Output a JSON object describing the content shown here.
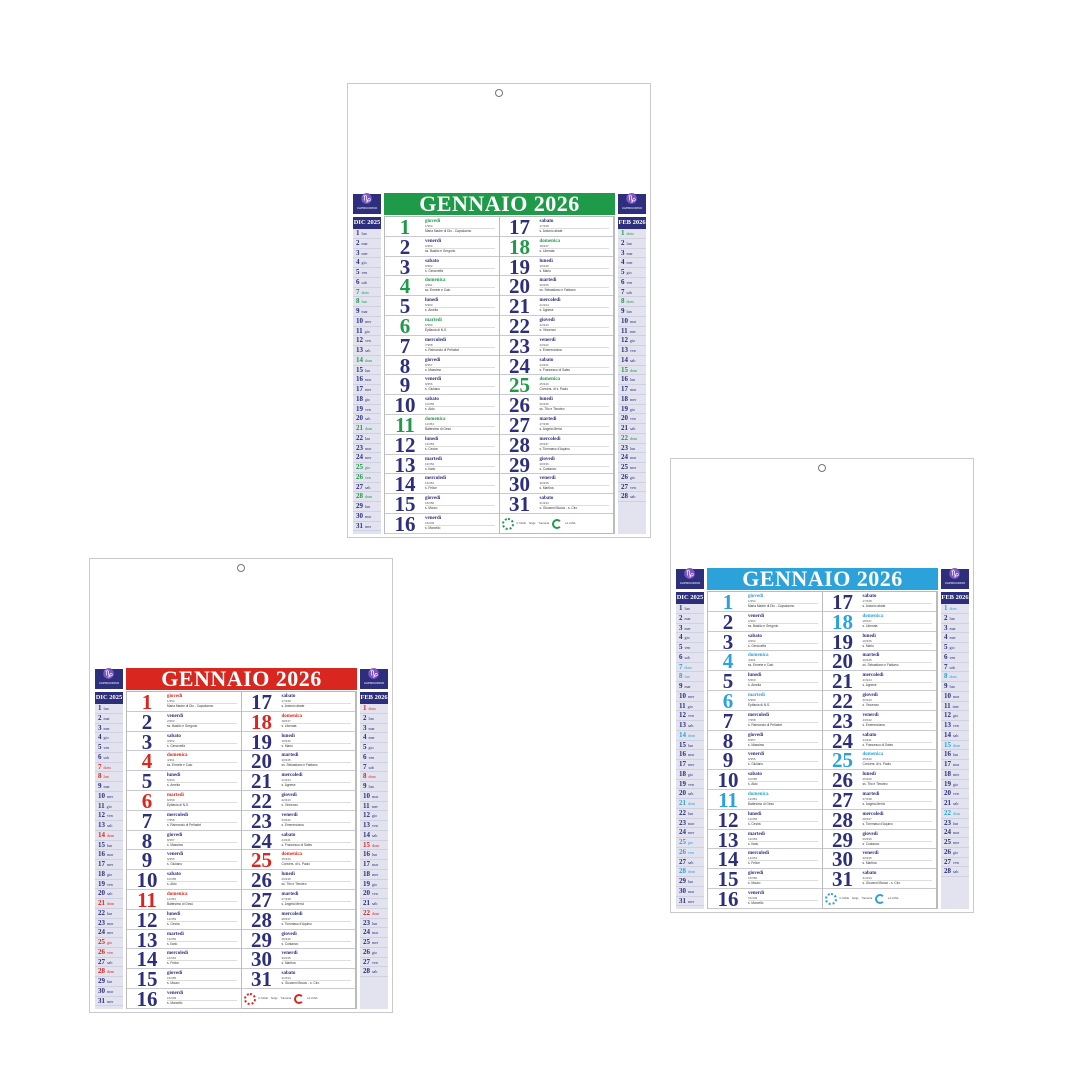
{
  "calendar": {
    "title": "GENNAIO 2026",
    "logo_text": "CAPRICORNO",
    "left_month": {
      "label": "DIC 2025",
      "days": [
        [
          "1",
          "lun",
          0
        ],
        [
          "2",
          "mar",
          0
        ],
        [
          "3",
          "mer",
          0
        ],
        [
          "4",
          "gio",
          0
        ],
        [
          "5",
          "ven",
          0
        ],
        [
          "6",
          "sab",
          0
        ],
        [
          "7",
          "dom",
          1
        ],
        [
          "8",
          "lun",
          1
        ],
        [
          "9",
          "mar",
          0
        ],
        [
          "10",
          "mer",
          0
        ],
        [
          "11",
          "gio",
          0
        ],
        [
          "12",
          "ven",
          0
        ],
        [
          "13",
          "sab",
          0
        ],
        [
          "14",
          "dom",
          1
        ],
        [
          "15",
          "lun",
          0
        ],
        [
          "16",
          "mar",
          0
        ],
        [
          "17",
          "mer",
          0
        ],
        [
          "18",
          "gio",
          0
        ],
        [
          "19",
          "ven",
          0
        ],
        [
          "20",
          "sab",
          0
        ],
        [
          "21",
          "dom",
          1
        ],
        [
          "22",
          "lun",
          0
        ],
        [
          "23",
          "mar",
          0
        ],
        [
          "24",
          "mer",
          0
        ],
        [
          "25",
          "gio",
          1
        ],
        [
          "26",
          "ven",
          1
        ],
        [
          "27",
          "sab",
          0
        ],
        [
          "28",
          "dom",
          1
        ],
        [
          "29",
          "lun",
          0
        ],
        [
          "30",
          "mar",
          0
        ],
        [
          "31",
          "mer",
          0
        ]
      ]
    },
    "right_month": {
      "label": "FEB 2026",
      "days": [
        [
          "1",
          "dom",
          1
        ],
        [
          "2",
          "lun",
          0
        ],
        [
          "3",
          "mar",
          0
        ],
        [
          "4",
          "mer",
          0
        ],
        [
          "5",
          "gio",
          0
        ],
        [
          "6",
          "ven",
          0
        ],
        [
          "7",
          "sab",
          0
        ],
        [
          "8",
          "dom",
          1
        ],
        [
          "9",
          "lun",
          0
        ],
        [
          "10",
          "mar",
          0
        ],
        [
          "11",
          "mer",
          0
        ],
        [
          "12",
          "gio",
          0
        ],
        [
          "13",
          "ven",
          0
        ],
        [
          "14",
          "sab",
          0
        ],
        [
          "15",
          "dom",
          1
        ],
        [
          "16",
          "lun",
          0
        ],
        [
          "17",
          "mar",
          0
        ],
        [
          "18",
          "mer",
          0
        ],
        [
          "19",
          "gio",
          0
        ],
        [
          "20",
          "ven",
          0
        ],
        [
          "21",
          "sab",
          0
        ],
        [
          "22",
          "dom",
          1
        ],
        [
          "23",
          "lun",
          0
        ],
        [
          "24",
          "mar",
          0
        ],
        [
          "25",
          "mer",
          0
        ],
        [
          "26",
          "gio",
          0
        ],
        [
          "27",
          "ven",
          0
        ],
        [
          "28",
          "sab",
          0
        ]
      ]
    },
    "days": [
      [
        "1",
        "giovedì",
        "1/364",
        "Maria Madre di Dio - Capodanno",
        1
      ],
      [
        "2",
        "venerdì",
        "2/363",
        "ss. Basilio e Gregorio",
        0
      ],
      [
        "3",
        "sabato",
        "3/362",
        "s. Genoveffa",
        0
      ],
      [
        "4",
        "domenica",
        "4/361",
        "ss. Ermete e Caio",
        1
      ],
      [
        "5",
        "lunedì",
        "5/360",
        "s. Amelia",
        0
      ],
      [
        "6",
        "martedì",
        "6/359",
        "Epifania di N.S.",
        1
      ],
      [
        "7",
        "mercoledì",
        "7/358",
        "s. Raimondo di Peñafort",
        0
      ],
      [
        "8",
        "giovedì",
        "8/357",
        "s. Massimo",
        0
      ],
      [
        "9",
        "venerdì",
        "9/356",
        "s. Giuliano",
        0
      ],
      [
        "10",
        "sabato",
        "10/355",
        "s. Aldo",
        0
      ],
      [
        "11",
        "domenica",
        "11/354",
        "Battesimo di Gesù",
        1
      ],
      [
        "12",
        "lunedì",
        "12/353",
        "s. Cesira",
        0
      ],
      [
        "13",
        "martedì",
        "13/352",
        "s. Ilario",
        0
      ],
      [
        "14",
        "mercoledì",
        "14/351",
        "s. Felice",
        0
      ],
      [
        "15",
        "giovedì",
        "15/350",
        "s. Mauro",
        0
      ],
      [
        "16",
        "venerdì",
        "16/349",
        "s. Marcello",
        0
      ],
      [
        "17",
        "sabato",
        "17/348",
        "s. Antonio abate",
        0
      ],
      [
        "18",
        "domenica",
        "18/347",
        "s. Liberata",
        1
      ],
      [
        "19",
        "lunedì",
        "19/346",
        "s. Mario",
        0
      ],
      [
        "20",
        "martedì",
        "20/345",
        "ss. Sebastiano e Fabiano",
        0
      ],
      [
        "21",
        "mercoledì",
        "21/344",
        "s. Agnese",
        0
      ],
      [
        "22",
        "giovedì",
        "22/343",
        "s. Vincenzo",
        0
      ],
      [
        "23",
        "venerdì",
        "23/342",
        "s. Emerenziana",
        0
      ],
      [
        "24",
        "sabato",
        "24/341",
        "s. Francesco di Sales",
        0
      ],
      [
        "25",
        "domenica",
        "25/340",
        "Convers. di s. Paolo",
        1
      ],
      [
        "26",
        "lunedì",
        "26/339",
        "ss. Tito e Timoteo",
        0
      ],
      [
        "27",
        "martedì",
        "27/338",
        "s. Angela Merici",
        0
      ],
      [
        "28",
        "mercoledì",
        "28/337",
        "s. Tommaso d'Aquino",
        0
      ],
      [
        "29",
        "giovedì",
        "29/336",
        "s. Costanzo",
        0
      ],
      [
        "30",
        "venerdì",
        "30/335",
        "s. Martina",
        0
      ],
      [
        "31",
        "sabato",
        "31/334",
        "s. Giovanni Bosco - s. Ciro",
        0
      ]
    ],
    "footer_labels": [
      "IL SOLE",
      "Sorge",
      "Tramonta",
      "LA LUNA"
    ]
  },
  "variants": [
    {
      "name": "green",
      "accent": "#1f9a48"
    },
    {
      "name": "red",
      "accent": "#d9271f"
    },
    {
      "name": "blue",
      "accent": "#2ba2da"
    }
  ],
  "colors": {
    "ink": "#2d2f7c",
    "side_bg": "#e2e3ef"
  }
}
